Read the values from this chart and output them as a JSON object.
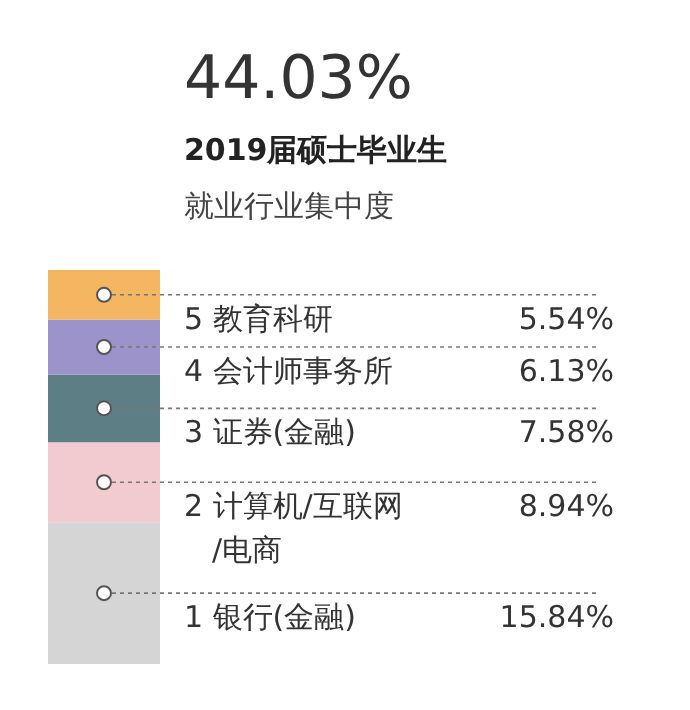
{
  "chart_data": {
    "type": "bar",
    "title": "44.03%",
    "subtitle": "2019届硕士毕业生",
    "xlabel": "就业行业集中度",
    "stacked": true,
    "categories": [
      null
    ],
    "series": [
      {
        "name": "1 银行(金融)",
        "color": "#d5d5d5",
        "values": [
          15.84
        ],
        "value_labels": [
          "15.84%"
        ]
      },
      {
        "name": "2 计算机/互联网/电商",
        "color": "#f1cbcf",
        "values": [
          8.94
        ],
        "value_labels": [
          "8.94%"
        ]
      },
      {
        "name": "3 证券(金融)",
        "color": "#5e7e86",
        "values": [
          7.58
        ],
        "value_labels": [
          "7.58%"
        ]
      },
      {
        "name": "4 会计师事务所",
        "color": "#9b93c9",
        "values": [
          6.13
        ],
        "value_labels": [
          "6.13%"
        ]
      },
      {
        "name": "5 教育科研",
        "color": "#f4b660",
        "values": [
          5.54
        ],
        "value_labels": [
          "5.54%"
        ]
      }
    ]
  }
}
